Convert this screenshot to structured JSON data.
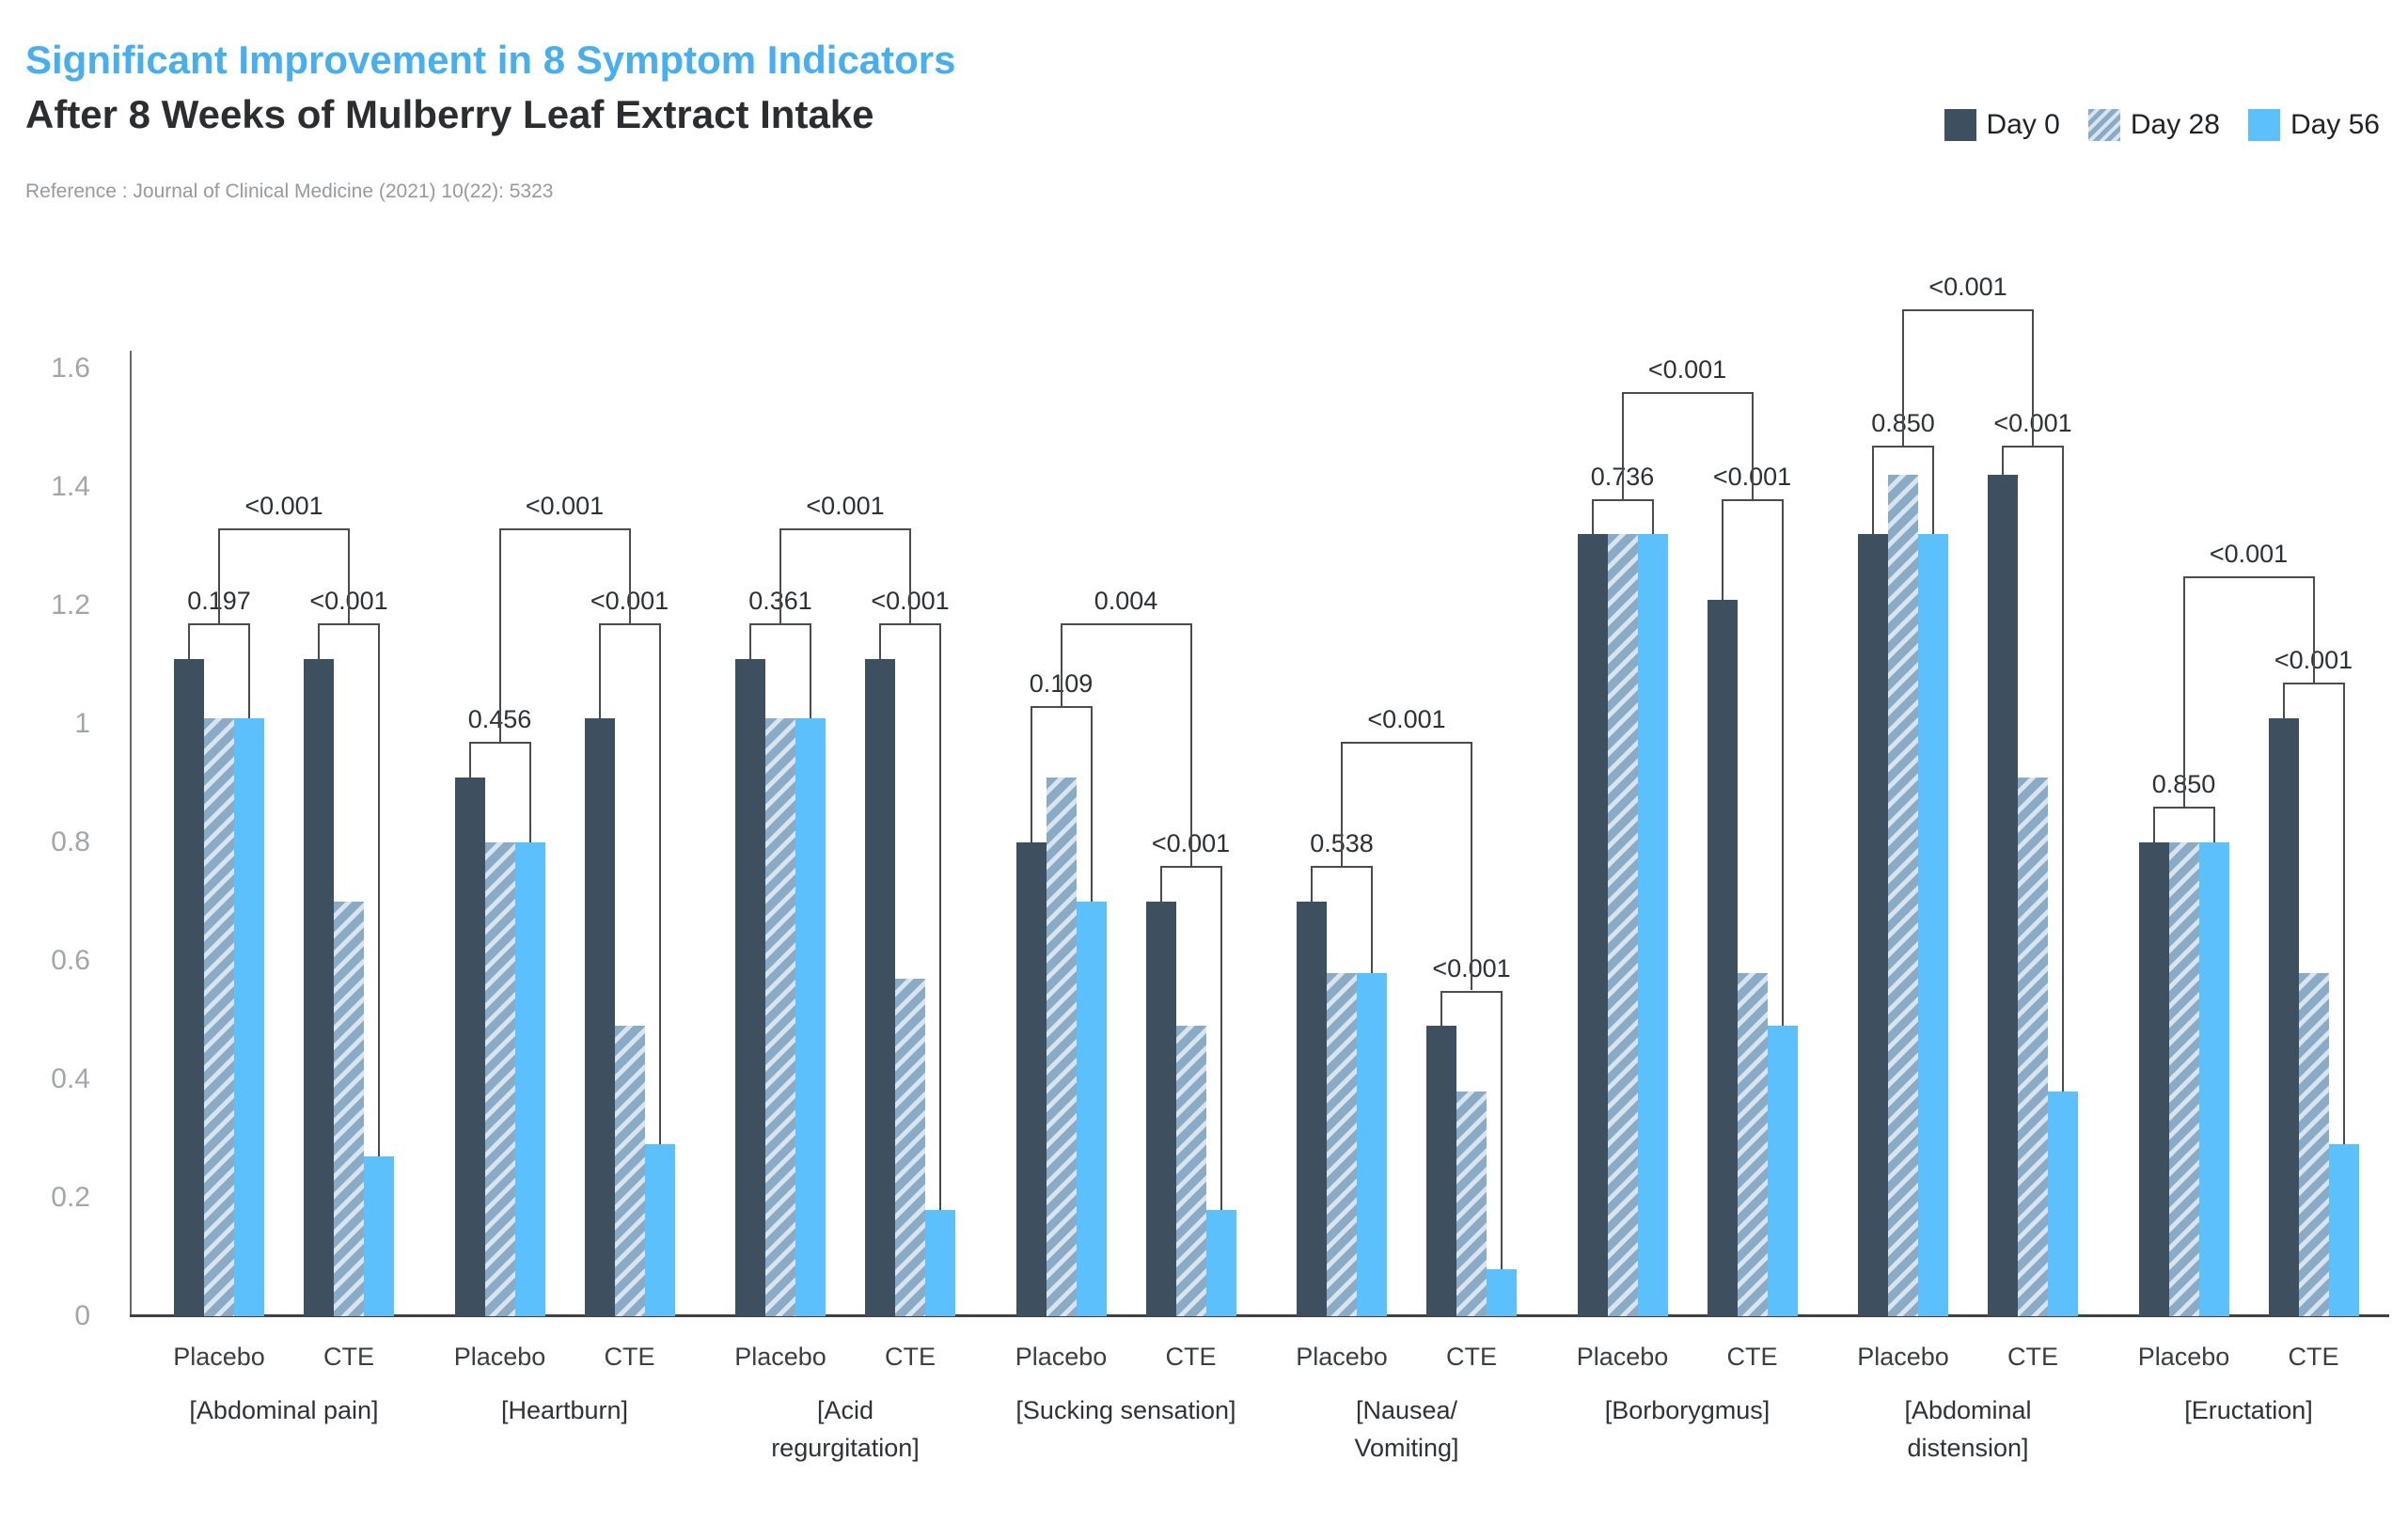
{
  "header": {
    "title": "Significant Improvement in 8 Symptom Indicators",
    "subtitle": "After 8 Weeks of Mulberry Leaf Extract Intake",
    "reference": "Reference : Journal of Clinical Medicine (2021) 10(22): 5323"
  },
  "legend": {
    "items": [
      {
        "label": "Day 0",
        "style": "solid-dark"
      },
      {
        "label": "Day 28",
        "style": "striped"
      },
      {
        "label": "Day 56",
        "style": "solid-light"
      }
    ]
  },
  "colors": {
    "title_accent": "#45aff2",
    "subtitle_text": "#2b2d30",
    "reference_text": "#97999c",
    "day0": "#3e5060",
    "day28_base": "#8aabc6",
    "day28_stripe": "#d9e5ee",
    "day56": "#5bc0fc",
    "axis": "#63676c",
    "baseline": "#3e4246",
    "bracket": "#4b4b4b",
    "tick_text": "#a2a6ab",
    "label_text": "#3a3e42",
    "p_text": "#2e3134"
  },
  "chart_data": {
    "type": "bar",
    "title": "Significant Improvement in 8 Symptom Indicators",
    "subtitle": "After 8 Weeks of Mulberry Leaf Extract Intake",
    "series": [
      "Day 0",
      "Day 28",
      "Day 56"
    ],
    "xlabel": "",
    "ylabel": "",
    "ylim": [
      0,
      1.6
    ],
    "yticks": [
      "0",
      "0.2",
      "0.4",
      "0.6",
      "0.8",
      "1",
      "1.2",
      "1.4",
      "1.6"
    ],
    "grid": false,
    "legend_position": "top-right",
    "groups": [
      {
        "label_lines": [
          "[Abdominal pain]"
        ],
        "outer_p": "<0.001",
        "outer_level": 1.33,
        "subgroups": [
          {
            "label": "Placebo",
            "values": [
              1.11,
              1.01,
              1.01
            ],
            "p": "0.197",
            "bracket_level": 1.17
          },
          {
            "label": "CTE",
            "values": [
              1.11,
              0.7,
              0.27
            ],
            "p": "<0.001",
            "bracket_level": 1.17
          }
        ]
      },
      {
        "label_lines": [
          "[Heartburn]"
        ],
        "outer_p": "<0.001",
        "outer_level": 1.33,
        "subgroups": [
          {
            "label": "Placebo",
            "values": [
              0.91,
              0.8,
              0.8
            ],
            "p": "0.456",
            "bracket_level": 0.97
          },
          {
            "label": "CTE",
            "values": [
              1.01,
              0.49,
              0.29
            ],
            "p": "<0.001",
            "bracket_level": 1.17
          }
        ]
      },
      {
        "label_lines": [
          "[Acid",
          "regurgitation]"
        ],
        "outer_p": "<0.001",
        "outer_level": 1.33,
        "subgroups": [
          {
            "label": "Placebo",
            "values": [
              1.11,
              1.01,
              1.01
            ],
            "p": "0.361",
            "bracket_level": 1.17
          },
          {
            "label": "CTE",
            "values": [
              1.11,
              0.57,
              0.18
            ],
            "p": "<0.001",
            "bracket_level": 1.17
          }
        ]
      },
      {
        "label_lines": [
          "[Sucking sensation]"
        ],
        "outer_p": "0.004",
        "outer_level": 1.17,
        "subgroups": [
          {
            "label": "Placebo",
            "values": [
              0.8,
              0.91,
              0.7
            ],
            "p": "0.109",
            "bracket_level": 1.03
          },
          {
            "label": "CTE",
            "values": [
              0.7,
              0.49,
              0.18
            ],
            "p": "<0.001",
            "bracket_level": 0.76
          }
        ]
      },
      {
        "label_lines": [
          "[Nausea/",
          "Vomiting]"
        ],
        "outer_p": "<0.001",
        "outer_level": 0.97,
        "subgroups": [
          {
            "label": "Placebo",
            "values": [
              0.7,
              0.58,
              0.58
            ],
            "p": "0.538",
            "bracket_level": 0.76
          },
          {
            "label": "CTE",
            "values": [
              0.49,
              0.38,
              0.08
            ],
            "p": "<0.001",
            "bracket_level": 0.55
          }
        ]
      },
      {
        "label_lines": [
          "[Borborygmus]"
        ],
        "outer_p": "<0.001",
        "outer_level": 1.56,
        "subgroups": [
          {
            "label": "Placebo",
            "values": [
              1.32,
              1.32,
              1.32
            ],
            "p": "0.736",
            "bracket_level": 1.38
          },
          {
            "label": "CTE",
            "values": [
              1.21,
              0.58,
              0.49
            ],
            "p": "<0.001",
            "bracket_level": 1.38
          }
        ]
      },
      {
        "label_lines": [
          "[Abdominal",
          "distension]"
        ],
        "outer_p": "<0.001",
        "outer_level": 1.7,
        "subgroups": [
          {
            "label": "Placebo",
            "values": [
              1.32,
              1.42,
              1.32
            ],
            "p": "0.850",
            "bracket_level": 1.47
          },
          {
            "label": "CTE",
            "values": [
              1.42,
              0.91,
              0.38
            ],
            "p": "<0.001",
            "bracket_level": 1.47
          }
        ]
      },
      {
        "label_lines": [
          "[Eructation]"
        ],
        "outer_p": "<0.001",
        "outer_level": 1.25,
        "subgroups": [
          {
            "label": "Placebo",
            "values": [
              0.8,
              0.8,
              0.8
            ],
            "p": "0.850",
            "bracket_level": 0.86
          },
          {
            "label": "CTE",
            "values": [
              1.01,
              0.58,
              0.29
            ],
            "p": "<0.001",
            "bracket_level": 1.07
          }
        ]
      }
    ]
  }
}
